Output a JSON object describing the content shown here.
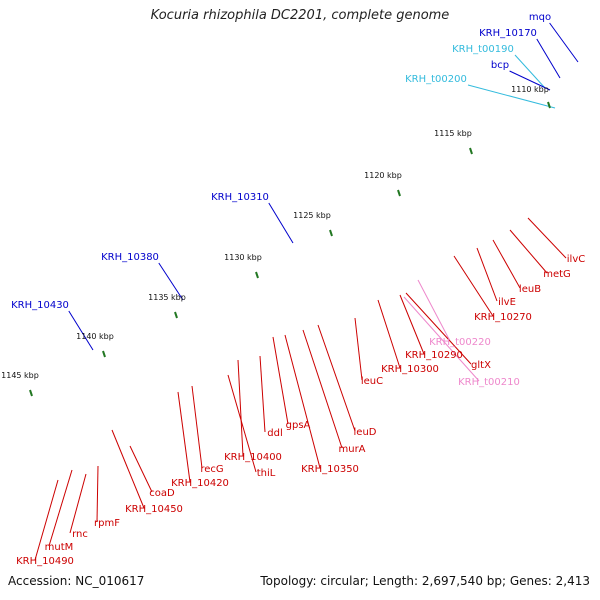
{
  "title": "Kocuria rhizophila DC2201, complete genome",
  "footer": {
    "accession": "Accession: NC_010617",
    "summary": "Topology: circular; Length: 2,697,540 bp; Genes: 2,413"
  },
  "ticks": [
    {
      "label": "1110 kbp"
    },
    {
      "label": "1115 kbp"
    },
    {
      "label": "1120 kbp"
    },
    {
      "label": "1125 kbp"
    },
    {
      "label": "1130 kbp"
    },
    {
      "label": "1135 kbp"
    },
    {
      "label": "1140 kbp"
    },
    {
      "label": "1145 kbp"
    }
  ],
  "outer_labels": [
    {
      "text": "mqo",
      "color": "#0000cc"
    },
    {
      "text": "KRH_10170",
      "color": "#0000cc"
    },
    {
      "text": "KRH_t00190",
      "color": "#33bbdd"
    },
    {
      "text": "bcp",
      "color": "#0000cc"
    },
    {
      "text": "KRH_t00200",
      "color": "#33bbdd"
    },
    {
      "text": "KRH_10310",
      "color": "#0000cc"
    },
    {
      "text": "KRH_10380",
      "color": "#0000cc"
    },
    {
      "text": "KRH_10430",
      "color": "#0000cc"
    }
  ],
  "inner_labels": [
    {
      "text": "ilvC",
      "color": "#cc0000"
    },
    {
      "text": "metG",
      "color": "#cc0000"
    },
    {
      "text": "leuB",
      "color": "#cc0000"
    },
    {
      "text": "ilvE",
      "color": "#cc0000"
    },
    {
      "text": "KRH_10270",
      "color": "#cc0000"
    },
    {
      "text": "KRH_t00220",
      "color": "#ee88cc"
    },
    {
      "text": "gltX",
      "color": "#cc0000"
    },
    {
      "text": "KRH_10290",
      "color": "#cc0000"
    },
    {
      "text": "KRH_t00210",
      "color": "#ee88cc"
    },
    {
      "text": "KRH_10300",
      "color": "#cc0000"
    },
    {
      "text": "leuC",
      "color": "#cc0000"
    },
    {
      "text": "leuD",
      "color": "#cc0000"
    },
    {
      "text": "murA",
      "color": "#cc0000"
    },
    {
      "text": "KRH_10350",
      "color": "#cc0000"
    },
    {
      "text": "gpsA",
      "color": "#cc0000"
    },
    {
      "text": "ddl",
      "color": "#cc0000"
    },
    {
      "text": "KRH_10400",
      "color": "#cc0000"
    },
    {
      "text": "thiL",
      "color": "#cc0000"
    },
    {
      "text": "recG",
      "color": "#cc0000"
    },
    {
      "text": "KRH_10420",
      "color": "#cc0000"
    },
    {
      "text": "coaD",
      "color": "#cc0000"
    },
    {
      "text": "KRH_10450",
      "color": "#cc0000"
    },
    {
      "text": "rpmF",
      "color": "#cc0000"
    },
    {
      "text": "rnc",
      "color": "#cc0000"
    },
    {
      "text": "mutM",
      "color": "#cc0000"
    },
    {
      "text": "KRH_10490",
      "color": "#cc0000"
    }
  ],
  "colors": {
    "red": "#ee1111",
    "blue": "#1133dd",
    "steel": "#5577aa",
    "gray": "#bbbbbb",
    "cyan": "#22dddd",
    "olive": "#668822",
    "orange": "#ee8800",
    "pink": "#ee6677",
    "magenta": "#ee2288",
    "navy": "#111177",
    "khaki": "#aaaa55",
    "skyblue": "#33bbdd",
    "tick": "#227722",
    "backbone": "#777777"
  }
}
